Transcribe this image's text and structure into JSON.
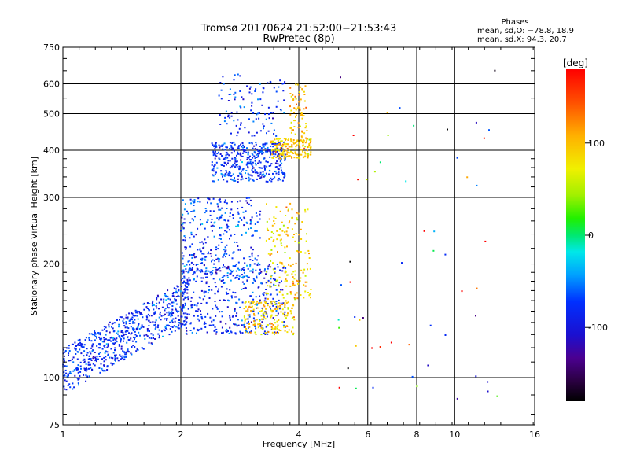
{
  "chart_data": {
    "type": "scatter",
    "title": "Tromsø 20170624 21:52:00−21:53:43",
    "subtitle": "RwPretec (8p)",
    "xlabel": "Frequency [MHz]",
    "ylabel": "Stationary phase Virtual Height [km]",
    "x_scale": "log",
    "y_scale": "log",
    "xlim": [
      1,
      16
    ],
    "ylim": [
      75,
      750
    ],
    "x_ticks": [
      "1",
      "2",
      "4",
      "6",
      "8",
      "10",
      "16"
    ],
    "x_tick_values": [
      1,
      2,
      4,
      6,
      8,
      10,
      16
    ],
    "y_ticks": [
      "75",
      "100",
      "200",
      "300",
      "400",
      "500",
      "600",
      "750"
    ],
    "y_tick_values": [
      75,
      100,
      200,
      300,
      400,
      500,
      600,
      750
    ],
    "x_gridlines": [
      2,
      4,
      6,
      8,
      10
    ],
    "y_gridlines": [
      100,
      200,
      300,
      400,
      500,
      600
    ],
    "grid": true,
    "colorbar": {
      "label": "[deg]",
      "range": [
        -180,
        180
      ],
      "ticks": [
        "100",
        "0",
        "-100"
      ],
      "tick_values": [
        100,
        0,
        -100
      ]
    },
    "phases": {
      "heading": "Phases",
      "o_line": "mean, sd,O: −78.8, 18.9",
      "x_line": "mean, sd,X:  94.3, 20.7"
    },
    "clusters": [
      {
        "name": "lowF_O",
        "f": [
          1.0,
          2.1
        ],
        "h": [
          98,
          175
        ],
        "phase_mean": -80,
        "phase_sd": 20,
        "count": 650,
        "ramp": true
      },
      {
        "name": "E_band_O",
        "f": [
          2.0,
          3.7
        ],
        "h": [
          130,
          200
        ],
        "phase_mean": -85,
        "phase_sd": 22,
        "count": 380
      },
      {
        "name": "mid_O",
        "f": [
          2.0,
          3.2
        ],
        "h": [
          180,
          300
        ],
        "phase_mean": -75,
        "phase_sd": 22,
        "count": 360
      },
      {
        "name": "F_O",
        "f": [
          2.4,
          3.7
        ],
        "h": [
          330,
          420
        ],
        "phase_mean": -80,
        "phase_sd": 18,
        "count": 420
      },
      {
        "name": "upper_O",
        "f": [
          2.5,
          3.7
        ],
        "h": [
          430,
          640
        ],
        "phase_mean": -80,
        "phase_sd": 20,
        "count": 110
      },
      {
        "name": "X_low",
        "f": [
          2.9,
          3.9
        ],
        "h": [
          130,
          160
        ],
        "phase_mean": 95,
        "phase_sd": 20,
        "count": 170
      },
      {
        "name": "X_mid",
        "f": [
          3.3,
          4.3
        ],
        "h": [
          160,
          290
        ],
        "phase_mean": 90,
        "phase_sd": 22,
        "count": 170
      },
      {
        "name": "X_F",
        "f": [
          3.4,
          4.3
        ],
        "h": [
          380,
          430
        ],
        "phase_mean": 95,
        "phase_sd": 18,
        "count": 160
      },
      {
        "name": "X_upper",
        "f": [
          3.8,
          4.2
        ],
        "h": [
          420,
          600
        ],
        "phase_mean": 100,
        "phase_sd": 20,
        "count": 70
      },
      {
        "name": "sparse_high",
        "f": [
          5.0,
          14.0
        ],
        "h": [
          80,
          660
        ],
        "phase_mean": 0,
        "phase_sd": 120,
        "count": 55
      }
    ]
  }
}
